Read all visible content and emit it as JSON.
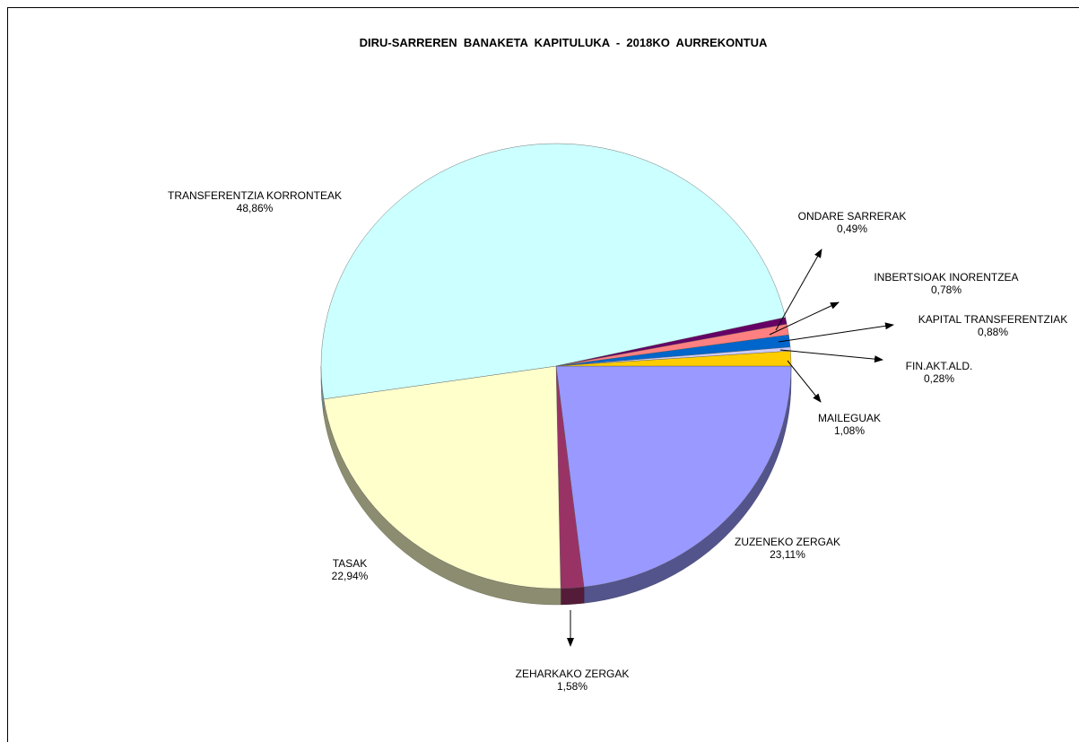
{
  "chart_data": {
    "type": "pie",
    "title": "DIRU-SARREREN  BANAKETA  KAPITULUKA  -  2018KO  AURREKONTUA",
    "slices": [
      {
        "label": "ZUZENEKO  ZERGAK",
        "value_text": "23,11%",
        "value": 23.11,
        "color": "#9999ff"
      },
      {
        "label": "ZEHARKAKO ZERGAK",
        "value_text": "1,58%",
        "value": 1.58,
        "color": "#993366"
      },
      {
        "label": "TASAK",
        "value_text": "22,94%",
        "value": 22.94,
        "color": "#ffffcc"
      },
      {
        "label": "TRANSFERENTZIA  KORRONTEAK",
        "value_text": "48,86%",
        "value": 48.86,
        "color": "#ccffff"
      },
      {
        "label": "ONDARE  SARRERAK",
        "value_text": "0,49%",
        "value": 0.49,
        "color": "#660066"
      },
      {
        "label": "INBERTSIOAK  INORENTZEA",
        "value_text": "0,78%",
        "value": 0.78,
        "color": "#ff8080"
      },
      {
        "label": "KAPITAL  TRANSFERENTZIAK",
        "value_text": "0,88%",
        "value": 0.88,
        "color": "#0066cc"
      },
      {
        "label": "FIN.AKT.ALD.",
        "value_text": "0,28%",
        "value": 0.28,
        "color": "#ccccff"
      },
      {
        "label": "MAILEGUAK",
        "value_text": "1,08%",
        "value": 1.08,
        "color": "#ffcc00"
      }
    ]
  }
}
